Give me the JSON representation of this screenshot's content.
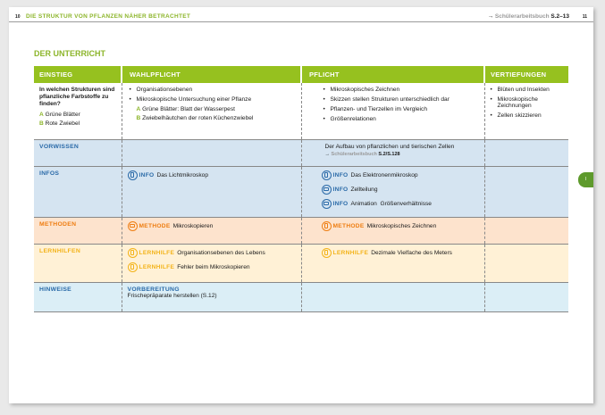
{
  "header": {
    "page_left": "10",
    "title": "DIE STRUKTUR VON PFLANZEN NÄHER BETRACHTET",
    "ref_label": "Schülerarbeitsbuch",
    "ref_pages": "S.2–13",
    "page_right": "11",
    "arrow": "→"
  },
  "section_title": "DER UNTERRICHT",
  "columns": [
    "EINSTIEG",
    "WAHLPFLICHT",
    "PFLICHT",
    "VERTIEFUNGEN"
  ],
  "einstieg": {
    "question": "In welchen Strukturen sind pflanzliche Farbstoffe zu finden?",
    "a": "Grüne Blätter",
    "b": "Rote Zwiebel",
    "a_label": "A",
    "b_label": "B"
  },
  "wahlpflicht": {
    "items": [
      "Organisationsebenen",
      "Mikroskopische Untersuchung einer Pflanze"
    ],
    "a": "Grüne Blätter: Blatt der Wasserpest",
    "b": "Zwiebelhäutchen der roten Küchenzwiebel"
  },
  "pflicht": {
    "items": [
      "Mikroskopisches Zeichnen",
      "Skizzen stellen Strukturen unterschiedlich dar",
      "Pflanzen- und Tierzellen im Vergleich",
      "Größenrelationen"
    ]
  },
  "vertiefungen": {
    "items": [
      "Blüten und Insekten",
      "Mikroskopische Zeichnungen",
      "Zellen skizzieren"
    ]
  },
  "rows": {
    "vorwissen": {
      "label": "VORWISSEN",
      "pflicht_text": "Der Aufbau von pflanzlichen und tierischen Zellen",
      "ref_label": "Schülerarbeitsbuch",
      "ref_pages": "S.2/S.128"
    },
    "infos": {
      "label": "INFOS",
      "wahl": [
        {
          "kw": "INFO",
          "text": "Das Lichtmikroskop",
          "icon": "tablet-icon"
        }
      ],
      "pflicht": [
        {
          "kw": "INFO",
          "text": "Das Elektronenmikroskop",
          "icon": "tablet-icon"
        },
        {
          "kw": "INFO",
          "text": "Zellteilung",
          "icon": "screen-icon"
        },
        {
          "kw": "INFO",
          "text": "Animation  Größenverhältnisse",
          "icon": "screen-icon"
        }
      ]
    },
    "methoden": {
      "label": "METHODEN",
      "wahl": [
        {
          "kw": "METHODE",
          "text": "Mikroskopieren",
          "icon": "screen-icon"
        }
      ],
      "pflicht": [
        {
          "kw": "METHODE",
          "text": "Mikroskopisches Zeichnen",
          "icon": "tablet-icon"
        }
      ]
    },
    "lernhilfen": {
      "label": "LERNHILFEN",
      "wahl": [
        {
          "kw": "LERNHILFE",
          "text": "Organisationsebenen des Lebens",
          "icon": "tablet-icon"
        },
        {
          "kw": "LERNHILFE",
          "text": "Fehler beim Mikroskopieren",
          "icon": "tablet-icon"
        }
      ],
      "pflicht": [
        {
          "kw": "LERNHILFE",
          "text": "Dezimale Vielfache des Meters",
          "icon": "tablet-icon"
        }
      ]
    },
    "hinweise": {
      "label": "HINWEISE",
      "title": "VORBEREITUNG",
      "text": "Frischepräparate herstellen (S.12)"
    }
  },
  "side_tab": "I",
  "colors": {
    "green": "#96c11f",
    "blue": "#2a6aa8",
    "orange": "#ee7d11",
    "yellow": "#f3b319"
  }
}
